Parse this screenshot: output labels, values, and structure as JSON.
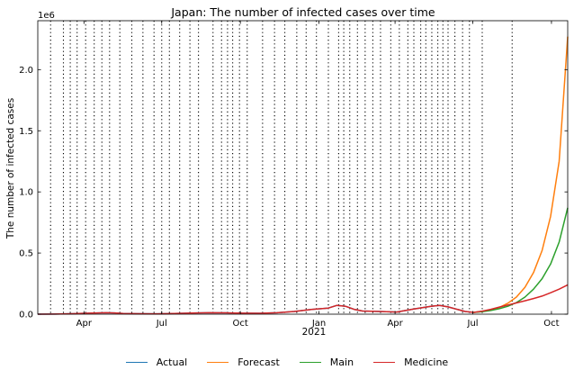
{
  "chart_data": {
    "type": "line",
    "title": "Japan: The number of infected cases over time",
    "xlabel": "",
    "ylabel": "The number of infected cases",
    "y_offset_label": "1e6",
    "x_year_label": "2021",
    "x_range": [
      0,
      620
    ],
    "ylim": [
      0,
      2400000
    ],
    "y_ticks": [
      {
        "value": 0,
        "label": "0.0"
      },
      {
        "value": 500000,
        "label": "0.5"
      },
      {
        "value": 1000000,
        "label": "1.0"
      },
      {
        "value": 1500000,
        "label": "1.5"
      },
      {
        "value": 2000000,
        "label": "2.0"
      }
    ],
    "x_ticks": [
      {
        "value": 54,
        "label": "Apr"
      },
      {
        "value": 145,
        "label": "Jul"
      },
      {
        "value": 237,
        "label": "Oct"
      },
      {
        "value": 329,
        "label": "Jan"
      },
      {
        "value": 418,
        "label": "Apr"
      },
      {
        "value": 509,
        "label": "Jul"
      },
      {
        "value": 601,
        "label": "Oct"
      }
    ],
    "change_dates": [
      15,
      30,
      38,
      46,
      56,
      66,
      75,
      84,
      96,
      110,
      123,
      136,
      145,
      154,
      166,
      178,
      188,
      205,
      215,
      222,
      228,
      236,
      245,
      263,
      277,
      289,
      303,
      314,
      326,
      340,
      352,
      358,
      365,
      374,
      383,
      392,
      401,
      413,
      423,
      433,
      440,
      448,
      454,
      461,
      468,
      474,
      480,
      488,
      497,
      505,
      520,
      555
    ],
    "series": [
      {
        "name": "Actual",
        "color": "#1f77b4",
        "x": [
          0,
          20,
          40,
          60,
          80,
          90,
          100,
          120,
          140,
          160,
          180,
          200,
          220,
          240,
          260,
          280,
          300,
          320,
          340,
          350,
          360,
          370,
          380,
          400,
          420,
          440,
          460,
          470,
          480,
          500,
          510
        ],
        "values": [
          0,
          1000,
          4000,
          8000,
          12000,
          10000,
          6000,
          4000,
          3000,
          5000,
          9000,
          12000,
          11000,
          8000,
          7000,
          12000,
          22000,
          38000,
          50000,
          72000,
          65000,
          40000,
          26000,
          22000,
          18000,
          42000,
          65000,
          72000,
          60000,
          22000,
          15000
        ]
      },
      {
        "name": "Forecast",
        "color": "#ff7f0e",
        "x": [
          510,
          520,
          530,
          540,
          550,
          560,
          570,
          580,
          590,
          600,
          610,
          620
        ],
        "values": [
          15000,
          22000,
          35000,
          55000,
          90000,
          140000,
          220000,
          340000,
          520000,
          800000,
          1250000,
          2270000
        ]
      },
      {
        "name": "Main",
        "color": "#2ca02c",
        "x": [
          510,
          520,
          530,
          540,
          550,
          560,
          570,
          580,
          590,
          600,
          610,
          620
        ],
        "values": [
          15000,
          20000,
          30000,
          45000,
          65000,
          95000,
          140000,
          205000,
          290000,
          410000,
          590000,
          870000
        ]
      },
      {
        "name": "Medicine",
        "color": "#d62728",
        "x": [
          0,
          20,
          40,
          60,
          80,
          90,
          100,
          120,
          140,
          160,
          180,
          200,
          220,
          240,
          260,
          280,
          300,
          320,
          340,
          350,
          360,
          370,
          380,
          400,
          420,
          440,
          460,
          470,
          480,
          500,
          510,
          520,
          530,
          540,
          550,
          560,
          570,
          580,
          590,
          600,
          610,
          620
        ],
        "values": [
          0,
          1000,
          4000,
          8000,
          12000,
          10000,
          6000,
          4000,
          3000,
          5000,
          9000,
          12000,
          11000,
          8000,
          7000,
          12000,
          22000,
          38000,
          50000,
          72000,
          65000,
          40000,
          26000,
          22000,
          18000,
          42000,
          65000,
          72000,
          60000,
          22000,
          15000,
          25000,
          40000,
          58000,
          75000,
          92000,
          110000,
          128000,
          148000,
          175000,
          205000,
          240000
        ]
      }
    ],
    "legend_position": "bottom-center"
  }
}
